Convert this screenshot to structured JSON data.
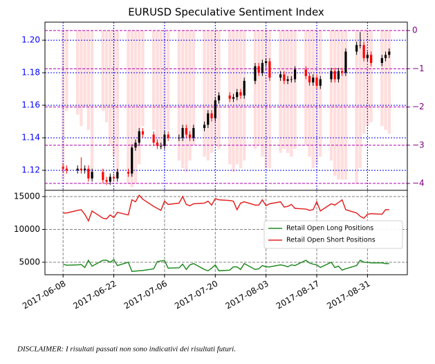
{
  "disclaimer": "DISCLAIMER: I risultati passati non sono indicativi dei risultati futuri.",
  "chart_data": [
    {
      "type": "candlestick",
      "title": "EURUSD Speculative Sentiment Index",
      "x": [
        "2017-06-08",
        "2017-06-09",
        "2017-06-12",
        "2017-06-13",
        "2017-06-14",
        "2017-06-15",
        "2017-06-16",
        "2017-06-19",
        "2017-06-20",
        "2017-06-21",
        "2017-06-22",
        "2017-06-23",
        "2017-06-26",
        "2017-06-27",
        "2017-06-28",
        "2017-06-29",
        "2017-06-30",
        "2017-07-03",
        "2017-07-04",
        "2017-07-05",
        "2017-07-06",
        "2017-07-07",
        "2017-07-10",
        "2017-07-11",
        "2017-07-12",
        "2017-07-13",
        "2017-07-14",
        "2017-07-17",
        "2017-07-18",
        "2017-07-19",
        "2017-07-20",
        "2017-07-21",
        "2017-07-24",
        "2017-07-25",
        "2017-07-26",
        "2017-07-27",
        "2017-07-28",
        "2017-07-31",
        "2017-08-01",
        "2017-08-02",
        "2017-08-03",
        "2017-08-04",
        "2017-08-07",
        "2017-08-08",
        "2017-08-09",
        "2017-08-10",
        "2017-08-11",
        "2017-08-14",
        "2017-08-15",
        "2017-08-16",
        "2017-08-17",
        "2017-08-18",
        "2017-08-21",
        "2017-08-22",
        "2017-08-23",
        "2017-08-24",
        "2017-08-25",
        "2017-08-28",
        "2017-08-29",
        "2017-08-30",
        "2017-08-31",
        "2017-09-01",
        "2017-09-04",
        "2017-09-05",
        "2017-09-06"
      ],
      "xlim": [
        "2017-06-03",
        "2017-09-11"
      ],
      "open": [
        1.122,
        1.121,
        1.12,
        1.121,
        1.12,
        1.121,
        1.115,
        1.119,
        1.114,
        1.113,
        1.116,
        1.115,
        1.119,
        1.118,
        1.134,
        1.137,
        1.144,
        1.142,
        1.137,
        1.135,
        1.135,
        1.142,
        1.14,
        1.14,
        1.146,
        1.142,
        1.14,
        1.146,
        1.148,
        1.155,
        1.152,
        1.163,
        1.166,
        1.164,
        1.165,
        1.168,
        1.166,
        1.175,
        1.184,
        1.18,
        1.186,
        1.187,
        1.177,
        1.179,
        1.175,
        1.176,
        1.176,
        1.182,
        1.178,
        1.174,
        1.177,
        1.172,
        1.176,
        1.181,
        1.176,
        1.181,
        1.18,
        1.193,
        1.197,
        1.197,
        1.189,
        1.191,
        1.186,
        1.189,
        1.191
      ],
      "high": [
        1.124,
        1.123,
        1.123,
        1.128,
        1.123,
        1.123,
        1.121,
        1.121,
        1.116,
        1.118,
        1.118,
        1.121,
        1.121,
        1.136,
        1.139,
        1.146,
        1.146,
        1.144,
        1.139,
        1.137,
        1.144,
        1.144,
        1.142,
        1.148,
        1.148,
        1.144,
        1.148,
        1.15,
        1.157,
        1.157,
        1.165,
        1.168,
        1.168,
        1.167,
        1.17,
        1.17,
        1.177,
        1.186,
        1.186,
        1.188,
        1.189,
        1.189,
        1.181,
        1.181,
        1.178,
        1.178,
        1.184,
        1.184,
        1.18,
        1.179,
        1.179,
        1.178,
        1.183,
        1.183,
        1.183,
        1.183,
        1.195,
        1.199,
        1.205,
        1.199,
        1.193,
        1.193,
        1.191,
        1.193,
        1.195
      ],
      "low": [
        1.119,
        1.118,
        1.118,
        1.118,
        1.118,
        1.113,
        1.113,
        1.112,
        1.111,
        1.111,
        1.113,
        1.113,
        1.116,
        1.116,
        1.132,
        1.135,
        1.14,
        1.135,
        1.133,
        1.133,
        1.133,
        1.138,
        1.138,
        1.138,
        1.14,
        1.138,
        1.138,
        1.144,
        1.146,
        1.15,
        1.15,
        1.161,
        1.162,
        1.162,
        1.163,
        1.164,
        1.164,
        1.173,
        1.178,
        1.178,
        1.184,
        1.175,
        1.175,
        1.173,
        1.173,
        1.174,
        1.174,
        1.176,
        1.172,
        1.172,
        1.17,
        1.17,
        1.174,
        1.174,
        1.174,
        1.178,
        1.178,
        1.191,
        1.195,
        1.187,
        1.187,
        1.184,
        1.184,
        1.187,
        1.189
      ],
      "close": [
        1.121,
        1.12,
        1.121,
        1.12,
        1.121,
        1.115,
        1.119,
        1.114,
        1.113,
        1.116,
        1.115,
        1.119,
        1.118,
        1.134,
        1.137,
        1.144,
        1.142,
        1.137,
        1.135,
        1.135,
        1.142,
        1.14,
        1.14,
        1.146,
        1.142,
        1.14,
        1.146,
        1.148,
        1.155,
        1.152,
        1.163,
        1.166,
        1.164,
        1.165,
        1.168,
        1.166,
        1.175,
        1.184,
        1.18,
        1.186,
        1.187,
        1.177,
        1.179,
        1.175,
        1.176,
        1.176,
        1.182,
        1.178,
        1.174,
        1.177,
        1.172,
        1.176,
        1.181,
        1.176,
        1.181,
        1.18,
        1.193,
        1.197,
        1.197,
        1.189,
        1.191,
        1.186,
        1.189,
        1.191,
        1.193
      ],
      "up_color": "#000000",
      "down_color": "#ff0000",
      "bars": {
        "values": [
          -3.9,
          -2.1,
          -2.2,
          -2.5,
          -2.0,
          -2.6,
          -3.9,
          -2.1,
          -2.4,
          -3.0,
          -3.3,
          -3.8,
          -4.0,
          -4.1,
          -4.0,
          -3.5,
          -2.5,
          -2.6,
          -3.0,
          -3.1,
          -2.7,
          -2.6,
          -3.4,
          -3.6,
          -3.7,
          -3.4,
          -3.0,
          -3.3,
          -3.4,
          -3.2,
          -3.0,
          -3.1,
          -3.5,
          -3.7,
          -3.5,
          -3.6,
          -3.4,
          -3.1,
          -3.0,
          -3.3,
          -3.6,
          -3.6,
          -3.2,
          -3.1,
          -3.2,
          -3.3,
          -3.1,
          -3.0,
          -3.3,
          -3.6,
          -3.5,
          -3.3,
          -3.4,
          -3.8,
          -3.9,
          -3.9,
          -3.9,
          -4.0,
          -3.6,
          -2.7,
          -2.5,
          -2.4,
          -2.5,
          -2.6,
          -2.7
        ],
        "color": "#ffd6d6",
        "axis": "y2"
      },
      "ylim": [
        1.1077,
        1.2111
      ],
      "yticks": [
        1.12,
        1.14,
        1.16,
        1.18,
        {
          "value": 1.2,
          "label": "1.20"
        }
      ],
      "y2lim": [
        -4.18,
        0.22
      ],
      "y2ticks": [
        0,
        {
          "value": -1,
          "label": "−1"
        },
        {
          "value": -2,
          "label": "−2"
        },
        {
          "value": -3,
          "label": "−3"
        },
        {
          "value": -4,
          "label": "−4"
        }
      ],
      "grid": true
    },
    {
      "type": "line",
      "x": [
        "2017-06-08",
        "2017-06-09",
        "2017-06-12",
        "2017-06-13",
        "2017-06-14",
        "2017-06-15",
        "2017-06-16",
        "2017-06-19",
        "2017-06-20",
        "2017-06-21",
        "2017-06-22",
        "2017-06-23",
        "2017-06-26",
        "2017-06-27",
        "2017-06-28",
        "2017-06-29",
        "2017-06-30",
        "2017-07-03",
        "2017-07-04",
        "2017-07-05",
        "2017-07-06",
        "2017-07-07",
        "2017-07-10",
        "2017-07-11",
        "2017-07-12",
        "2017-07-13",
        "2017-07-14",
        "2017-07-17",
        "2017-07-18",
        "2017-07-19",
        "2017-07-20",
        "2017-07-21",
        "2017-07-24",
        "2017-07-25",
        "2017-07-26",
        "2017-07-27",
        "2017-07-28",
        "2017-07-31",
        "2017-08-01",
        "2017-08-02",
        "2017-08-03",
        "2017-08-04",
        "2017-08-07",
        "2017-08-08",
        "2017-08-09",
        "2017-08-10",
        "2017-08-11",
        "2017-08-14",
        "2017-08-15",
        "2017-08-16",
        "2017-08-17",
        "2017-08-18",
        "2017-08-21",
        "2017-08-22",
        "2017-08-23",
        "2017-08-24",
        "2017-08-25",
        "2017-08-28",
        "2017-08-29",
        "2017-08-30",
        "2017-08-31",
        "2017-09-01",
        "2017-09-04",
        "2017-09-05",
        "2017-09-06"
      ],
      "xlim": [
        "2017-06-03",
        "2017-09-11"
      ],
      "xticks": [
        "2017-06-08",
        "2017-06-22",
        "2017-07-06",
        "2017-07-20",
        "2017-08-03",
        "2017-08-17",
        "2017-08-31"
      ],
      "series": [
        {
          "name": "Retail Open Long Positions",
          "color": "#228b22",
          "values": [
            4700,
            4550,
            4600,
            4650,
            4200,
            5300,
            4400,
            5300,
            5300,
            5000,
            5400,
            4500,
            5000,
            3600,
            3650,
            3700,
            3750,
            4000,
            5100,
            5200,
            5250,
            4100,
            4150,
            4700,
            3900,
            4600,
            4800,
            3900,
            3700,
            4100,
            4600,
            3700,
            3800,
            4300,
            4300,
            3900,
            4800,
            3900,
            4000,
            4500,
            4300,
            4300,
            4600,
            4500,
            4300,
            4600,
            4500,
            5300,
            4900,
            4700,
            4600,
            4200,
            5000,
            4200,
            4400,
            3800,
            4000,
            4500,
            5300,
            5000,
            5000,
            4900,
            4900,
            4800,
            4800
          ]
        },
        {
          "name": "Retail Open Short Positions",
          "color": "#e32222",
          "values": [
            12500,
            12500,
            12900,
            13000,
            12300,
            11300,
            12800,
            11700,
            11600,
            12200,
            11800,
            12600,
            12200,
            14500,
            14200,
            15200,
            14600,
            13500,
            13200,
            12900,
            14300,
            13800,
            14000,
            15000,
            13800,
            13600,
            13900,
            14000,
            14300,
            13700,
            14700,
            14500,
            14400,
            14300,
            13000,
            14000,
            14200,
            13700,
            13700,
            14500,
            13600,
            13900,
            14200,
            13400,
            13500,
            13800,
            13200,
            13100,
            12900,
            13000,
            14200,
            12800,
            13900,
            13700,
            14100,
            14500,
            13000,
            12500,
            12000,
            11700,
            12300,
            12400,
            12300,
            13000,
            13000
          ]
        }
      ],
      "ylim": [
        3100,
        15950
      ],
      "yticks": [
        5000,
        10000,
        15000
      ],
      "grid": true,
      "legend": "center right"
    }
  ]
}
